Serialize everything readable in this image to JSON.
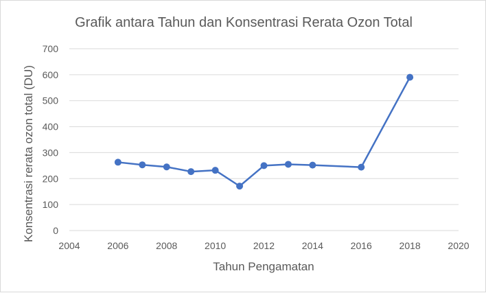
{
  "chart_data": {
    "type": "scatter",
    "title": "Grafik antara Tahun dan Konsentrasi Rerata Ozon Total",
    "xlabel": "Tahun Pengamatan",
    "ylabel": "Konsentrasi rerata ozon total (DU)",
    "xlim": [
      2004,
      2020
    ],
    "ylim": [
      0,
      700
    ],
    "xticks": [
      2004,
      2006,
      2008,
      2010,
      2012,
      2014,
      2016,
      2018,
      2020
    ],
    "yticks": [
      0,
      100,
      200,
      300,
      400,
      500,
      600,
      700
    ],
    "grid": "horizontal",
    "legend": "none",
    "series": [
      {
        "color": "#4472c4",
        "x": [
          2006,
          2007,
          2008,
          2009,
          2010,
          2011,
          2012,
          2013,
          2014,
          2016,
          2018
        ],
        "y": [
          263,
          253,
          245,
          227,
          232,
          171,
          250,
          255,
          252,
          244,
          590
        ]
      }
    ]
  }
}
